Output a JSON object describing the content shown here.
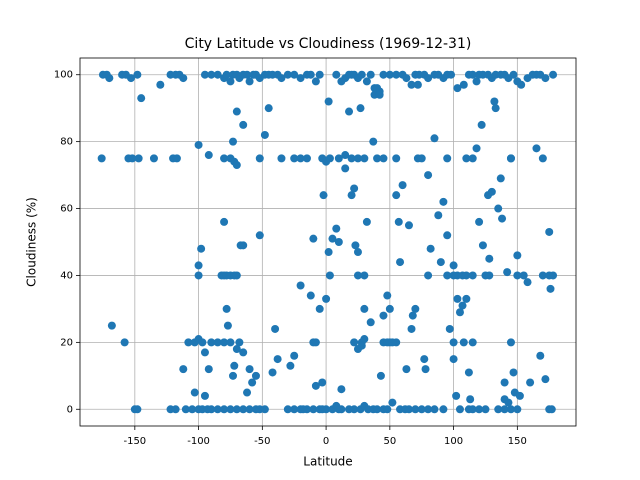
{
  "chart_data": {
    "type": "scatter",
    "title": "City Latitude vs Cloudiness (1969-12-31)",
    "x_label": "Latitude",
    "y_label": "Cloudiness (%)",
    "xlim": [
      -193,
      196
    ],
    "ylim": [
      -5,
      105
    ],
    "xticks": [
      -150,
      -100,
      -50,
      0,
      50,
      100,
      150
    ],
    "yticks": [
      0,
      20,
      40,
      60,
      80,
      100
    ],
    "grid": true,
    "color": "#1f77b4",
    "x": [
      -175,
      -172,
      -170,
      -160,
      -157,
      -153,
      -148,
      -130,
      -122,
      -118,
      -115,
      -112,
      -95,
      -90,
      -85,
      -80,
      -78,
      -75,
      -73,
      -70,
      -68,
      -65,
      -62,
      -60,
      -57,
      -55,
      -52,
      -48,
      -45,
      -42,
      -38,
      -35,
      -30,
      -25,
      -20,
      -15,
      -12,
      -8,
      -5,
      2,
      8,
      12,
      15,
      18,
      20,
      22,
      25,
      28,
      32,
      35,
      38,
      42,
      45,
      50,
      55,
      60,
      63,
      67,
      70,
      73,
      77,
      80,
      85,
      88,
      92,
      95,
      98,
      103,
      108,
      112,
      115,
      118,
      120,
      123,
      127,
      130,
      133,
      137,
      140,
      143,
      147,
      150,
      153,
      158,
      162,
      165,
      168,
      172,
      178,
      -145,
      -176,
      -155,
      -152,
      -147,
      -135,
      -120,
      -117,
      -80,
      -75,
      -72,
      -70,
      -52,
      -35,
      -25,
      -20,
      -15,
      -3,
      0,
      3,
      10,
      15,
      20,
      25,
      30,
      40,
      45,
      55,
      72,
      95,
      110,
      115,
      145,
      -100,
      -92,
      -73,
      -65,
      -70,
      -45,
      -65,
      -48,
      -150,
      -148,
      -122,
      -118,
      -110,
      -105,
      -100,
      -97,
      -93,
      -90,
      -85,
      -80,
      -75,
      -70,
      -65,
      -60,
      -55,
      -52,
      -48,
      -25,
      -20,
      -15,
      -10,
      -5,
      0,
      5,
      8,
      12,
      18,
      22,
      27,
      30,
      33,
      37,
      40,
      45,
      48,
      52,
      58,
      62,
      65,
      70,
      75,
      80,
      85,
      92,
      105,
      112,
      115,
      120,
      125,
      135,
      140,
      145,
      150,
      175,
      177,
      -30,
      -3,
      10,
      -82,
      -80,
      -78,
      -75,
      -72,
      -70,
      -100,
      25,
      30,
      80,
      95,
      100,
      103,
      107,
      110,
      115,
      125,
      128,
      150,
      170,
      175,
      178,
      -98,
      155,
      -108,
      -103,
      -100,
      -97,
      -95,
      -90,
      -85,
      -80,
      -75,
      -68,
      -10,
      -8,
      22,
      25,
      28,
      30,
      45,
      48,
      50,
      55,
      100,
      115,
      145,
      -168,
      -158,
      -112,
      -103,
      -100,
      -95,
      -92,
      -80,
      -78,
      -77,
      -73,
      -72,
      -70,
      -67,
      -65,
      -62,
      -60,
      -58,
      -55,
      -52,
      -42,
      -40,
      -38,
      -28,
      -25,
      -20,
      -18,
      -12,
      -10,
      -8,
      -5,
      -3,
      -2,
      0,
      2,
      3,
      5,
      8,
      10,
      12,
      15,
      18,
      20,
      22,
      23,
      25,
      27,
      28,
      30,
      32,
      35,
      37,
      38,
      40,
      42,
      43,
      45,
      48,
      50,
      52,
      55,
      57,
      58,
      60,
      63,
      65,
      67,
      68,
      70,
      72,
      75,
      77,
      78,
      80,
      82,
      85,
      88,
      90,
      92,
      95,
      97,
      100,
      102,
      105,
      107,
      108,
      110,
      112,
      113,
      118,
      120,
      122,
      123,
      127,
      128,
      130,
      132,
      133,
      135,
      137,
      138,
      140,
      142,
      145,
      147,
      148,
      150,
      152,
      160,
      165,
      168,
      170,
      172,
      175,
      176,
      158,
      140,
      143,
      100,
      103
    ],
    "values": [
      100,
      100,
      99,
      100,
      100,
      99,
      100,
      97,
      100,
      100,
      100,
      99,
      100,
      100,
      100,
      99,
      100,
      98,
      100,
      100,
      99,
      100,
      100,
      98,
      100,
      100,
      99,
      100,
      100,
      100,
      100,
      99,
      100,
      100,
      99,
      100,
      100,
      98,
      100,
      92,
      100,
      98,
      99,
      100,
      100,
      100,
      99,
      100,
      98,
      100,
      96,
      95,
      100,
      100,
      100,
      100,
      99,
      97,
      100,
      100,
      100,
      99,
      100,
      100,
      99,
      100,
      100,
      96,
      97,
      100,
      100,
      98,
      100,
      100,
      100,
      99,
      100,
      100,
      100,
      99,
      100,
      98,
      97,
      99,
      100,
      100,
      100,
      99,
      100,
      93,
      75,
      75,
      75,
      75,
      75,
      75,
      75,
      75,
      75,
      74,
      73,
      75,
      75,
      75,
      75,
      75,
      75,
      74,
      75,
      75,
      76,
      75,
      75,
      75,
      75,
      75,
      75,
      75,
      75,
      75,
      75,
      75,
      79,
      76,
      80,
      85,
      89,
      90,
      49,
      82,
      0,
      0,
      0,
      0,
      0,
      0,
      0,
      0,
      0,
      0,
      0,
      0,
      0,
      0,
      0,
      0,
      0,
      0,
      0,
      0,
      0,
      0,
      0,
      0,
      0,
      0,
      1,
      0,
      0,
      0,
      0,
      1,
      0,
      0,
      0,
      0,
      0,
      2,
      0,
      0,
      0,
      0,
      0,
      0,
      0,
      0,
      0,
      0,
      0,
      0,
      0,
      0,
      0,
      0,
      0,
      0,
      0,
      0,
      0,
      0,
      40,
      40,
      40,
      40,
      40,
      40,
      40,
      40,
      40,
      40,
      40,
      43,
      40,
      40,
      40,
      40,
      40,
      40,
      40,
      40,
      40,
      40,
      48,
      40,
      20,
      20,
      21,
      20,
      17,
      20,
      20,
      20,
      20,
      20,
      20,
      20,
      20,
      18,
      20,
      21,
      20,
      20,
      20,
      20,
      20,
      20,
      20,
      25,
      20,
      12,
      5,
      43,
      4,
      12,
      56,
      30,
      25,
      10,
      13,
      18,
      49,
      17,
      5,
      12,
      8,
      10,
      52,
      11,
      24,
      15,
      13,
      16,
      37,
      0,
      34,
      51,
      7,
      30,
      8,
      64,
      33,
      47,
      40,
      51,
      54,
      50,
      6,
      72,
      89,
      64,
      66,
      49,
      47,
      90,
      19,
      30,
      56,
      26,
      80,
      94,
      96,
      94,
      10,
      28,
      34,
      30,
      20,
      64,
      56,
      44,
      67,
      12,
      55,
      24,
      28,
      30,
      97,
      75,
      15,
      12,
      70,
      48,
      81,
      58,
      44,
      62,
      52,
      24,
      15,
      4,
      29,
      31,
      20,
      33,
      11,
      3,
      78,
      56,
      85,
      49,
      64,
      45,
      65,
      92,
      90,
      60,
      69,
      57,
      8,
      41,
      75,
      11,
      5,
      46,
      4,
      8,
      78,
      16,
      75,
      9,
      53,
      36,
      38,
      3,
      2,
      40,
      33
    ]
  }
}
